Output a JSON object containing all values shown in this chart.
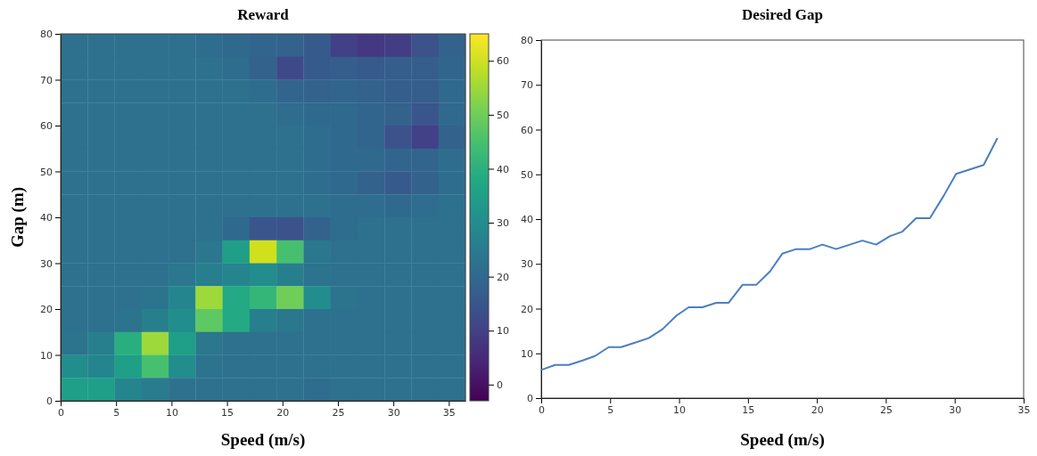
{
  "chart_data": [
    {
      "type": "heatmap",
      "title": "Reward",
      "xlabel": "Speed (m/s)",
      "ylabel": "Gap (m)",
      "xlim": [
        0,
        36.5
      ],
      "xticks": [
        0,
        5,
        10,
        15,
        20,
        25,
        30,
        35
      ],
      "ylim": [
        0,
        80
      ],
      "yticks": [
        0,
        10,
        20,
        30,
        40,
        50,
        60,
        70,
        80
      ],
      "clim": [
        -3,
        65
      ],
      "cticks": [
        0,
        10,
        20,
        30,
        40,
        50,
        60
      ],
      "cells": [
        [
          22,
          22,
          22,
          22,
          22,
          21,
          20,
          19,
          18,
          16,
          10,
          8,
          9,
          14,
          18
        ],
        [
          22,
          22,
          22,
          22,
          22,
          22,
          21,
          18,
          12,
          16,
          17,
          16,
          17,
          17,
          19
        ],
        [
          22,
          22,
          22,
          22,
          22,
          22,
          22,
          21,
          19,
          18,
          19,
          18,
          17,
          17,
          20
        ],
        [
          22,
          22,
          22,
          22,
          22,
          22,
          22,
          22,
          21,
          20,
          20,
          19,
          18,
          15,
          20
        ],
        [
          22,
          22,
          22,
          22,
          22,
          22,
          22,
          22,
          22,
          21,
          20,
          19,
          14,
          10,
          18
        ],
        [
          22,
          22,
          22,
          22,
          22,
          22,
          22,
          22,
          22,
          21,
          20,
          20,
          19,
          19,
          21
        ],
        [
          22,
          22,
          22,
          22,
          22,
          22,
          22,
          22,
          22,
          21,
          20,
          18,
          16,
          18,
          21
        ],
        [
          22,
          22,
          22,
          22,
          22,
          22,
          22,
          22,
          22,
          22,
          21,
          21,
          20,
          21,
          22
        ],
        [
          22,
          22,
          22,
          22,
          22,
          22,
          20,
          15,
          14,
          18,
          21,
          22,
          22,
          22,
          22
        ],
        [
          22,
          22,
          22,
          22,
          22,
          24,
          35,
          60,
          45,
          24,
          22,
          22,
          22,
          22,
          22
        ],
        [
          22,
          22,
          22,
          22,
          24,
          26,
          28,
          30,
          26,
          23,
          22,
          22,
          22,
          22,
          22
        ],
        [
          22,
          22,
          22,
          23,
          28,
          55,
          38,
          42,
          50,
          30,
          23,
          22,
          22,
          22,
          22
        ],
        [
          22,
          22,
          23,
          26,
          30,
          48,
          38,
          26,
          24,
          22,
          22,
          22,
          22,
          22,
          22
        ],
        [
          23,
          26,
          40,
          55,
          35,
          24,
          22,
          22,
          22,
          22,
          22,
          22,
          22,
          22,
          22
        ],
        [
          30,
          28,
          35,
          45,
          30,
          23,
          22,
          22,
          22,
          22,
          22,
          22,
          22,
          22,
          22
        ],
        [
          35,
          35,
          28,
          25,
          22,
          22,
          22,
          22,
          22,
          21,
          22,
          22,
          22,
          22,
          22
        ]
      ]
    },
    {
      "type": "line",
      "title": "Desired Gap",
      "xlabel": "Speed (m/s)",
      "xlim": [
        0,
        35
      ],
      "xticks": [
        0,
        5,
        10,
        15,
        20,
        25,
        30,
        35
      ],
      "ylim": [
        0,
        80
      ],
      "yticks": [
        0,
        10,
        20,
        30,
        40,
        50,
        60,
        70,
        80
      ],
      "x": [
        0,
        1,
        2,
        3,
        3.9,
        4.9,
        5.8,
        6.8,
        7.8,
        8.8,
        9.8,
        10.7,
        11.7,
        12.7,
        13.6,
        14.6,
        15.6,
        16.6,
        17.5,
        18.5,
        19.5,
        20.4,
        21.4,
        22.4,
        23.3,
        24.3,
        25.3,
        26.2,
        27.2,
        28.2,
        29.2,
        30.1,
        31.1,
        32.1,
        33.1
      ],
      "series": [
        {
          "color": "#4a7fc1",
          "values": [
            6.3,
            7.4,
            7.4,
            8.4,
            9.4,
            11.4,
            11.4,
            12.4,
            13.4,
            15.4,
            18.4,
            20.3,
            20.3,
            21.3,
            21.3,
            25.3,
            25.3,
            28.3,
            32.3,
            33.3,
            33.3,
            34.3,
            33.3,
            34.3,
            35.2,
            34.3,
            36.2,
            37.2,
            40.2,
            40.2,
            45.2,
            50.1,
            51.1,
            52.1,
            58.1
          ]
        }
      ]
    }
  ]
}
